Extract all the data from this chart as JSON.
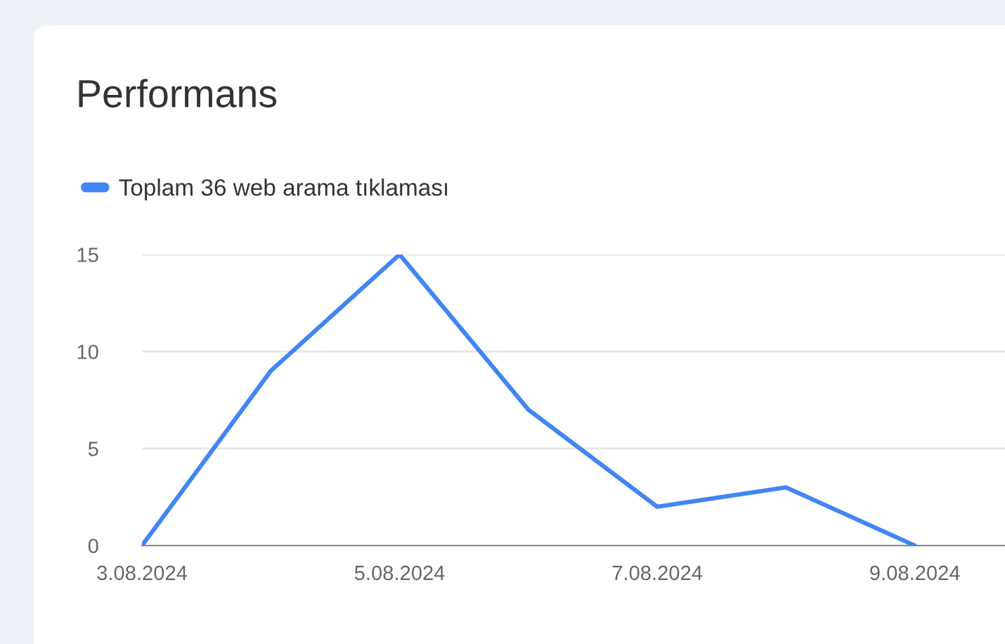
{
  "chart_data": {
    "type": "line",
    "title": "Performans",
    "categories": [
      "3.08.2024",
      null,
      "5.08.2024",
      null,
      "7.08.2024",
      null,
      "9.08.2024"
    ],
    "series": [
      {
        "name": "Toplam 36 web arama tıklaması",
        "color": "#4285f4",
        "values": [
          0,
          9,
          15,
          7,
          2,
          3,
          0
        ]
      }
    ],
    "ylim": [
      0,
      15
    ],
    "yticks": [
      0,
      5,
      10,
      15
    ],
    "grid": "y",
    "legend": "top left",
    "marker": "none",
    "line_style": "solid"
  }
}
